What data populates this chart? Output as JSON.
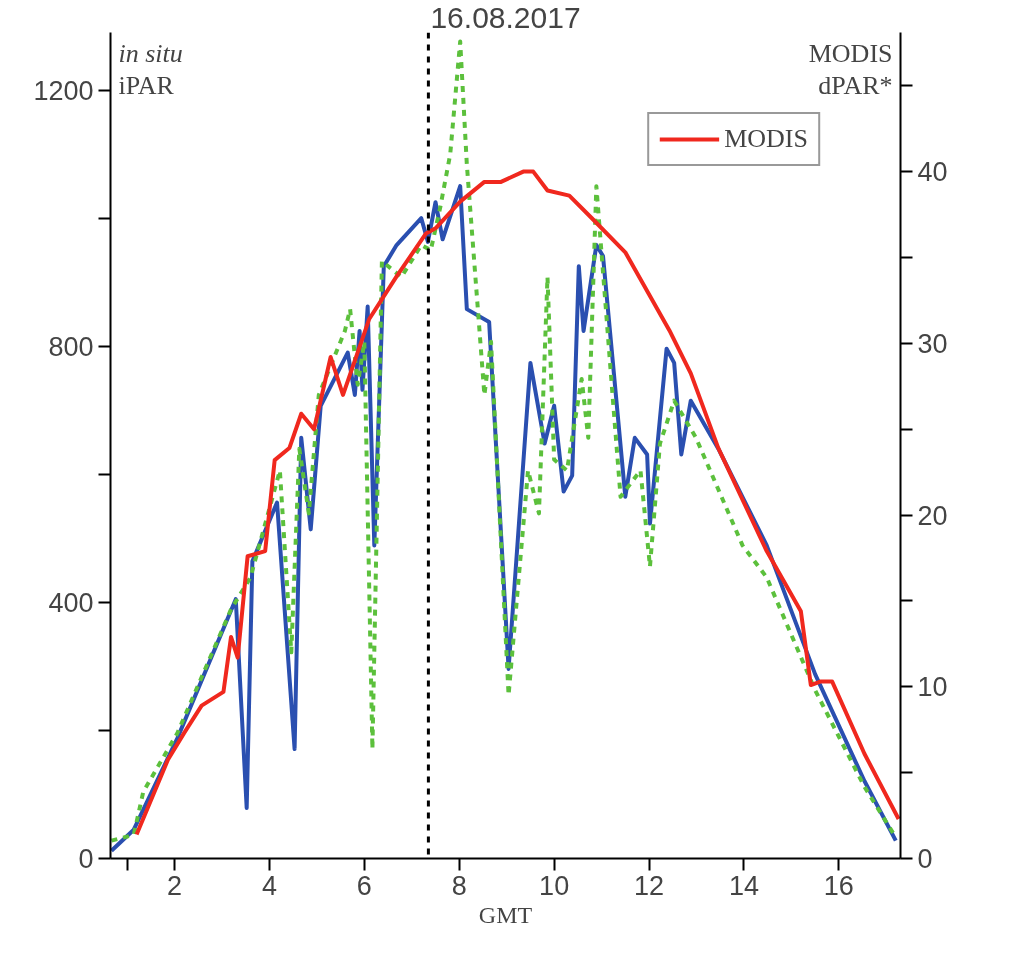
{
  "chart_data": {
    "type": "line",
    "title": "16.08.2017",
    "xlabel": "GMT",
    "ylabel": "in situ\niPAR",
    "y2label": "MODIS\ndPAR*",
    "xlim": [
      0.65,
      17.3
    ],
    "xticks": [
      {
        "value": 1,
        "label": null
      },
      2,
      4,
      6,
      8,
      10,
      12,
      14,
      16
    ],
    "ylim": [
      0,
      1290
    ],
    "yticks": [
      0,
      {
        "value": 200,
        "label": null
      },
      400,
      {
        "value": 600,
        "label": null
      },
      800,
      {
        "value": 1000,
        "label": null
      },
      1200
    ],
    "y2lim": [
      0,
      48.1
    ],
    "y2ticks": [
      0,
      {
        "value": 5,
        "label": null
      },
      10,
      {
        "value": 15,
        "label": null
      },
      20,
      {
        "value": 25,
        "label": null
      },
      30,
      {
        "value": 35,
        "label": null
      },
      40,
      {
        "value": 45,
        "label": null
      }
    ],
    "grid": false,
    "legend": "top right",
    "marker": "none",
    "ref_lines": [
      {
        "axis": "x",
        "value": 7.35,
        "color": "#000000",
        "line_style": "dashed"
      }
    ],
    "series": [
      {
        "color": "#2a4fb0",
        "line_style": "solid",
        "x": [
          0.67,
          1.14,
          2.06,
          3.29,
          3.52,
          3.64,
          4.16,
          4.53,
          4.67,
          4.87,
          5.08,
          5.65,
          5.8,
          5.9,
          5.96,
          6.07,
          6.21,
          6.41,
          6.68,
          7.2,
          7.34,
          7.5,
          7.65,
          8.02,
          8.16,
          8.63,
          9.04,
          9.5,
          9.8,
          10.0,
          10.2,
          10.38,
          10.52,
          10.62,
          10.89,
          11.03,
          11.5,
          11.7,
          11.96,
          12.02,
          12.37,
          12.53,
          12.68,
          12.88,
          13.46,
          14.48,
          15.5,
          16.54,
          17.2
        ],
        "values": [
          12,
          45,
          188,
          405,
          79,
          464,
          556,
          171,
          657,
          514,
          707,
          790,
          724,
          824,
          732,
          862,
          489,
          925,
          958,
          1000,
          963,
          1025,
          967,
          1050,
          858,
          838,
          296,
          774,
          648,
          707,
          573,
          598,
          925,
          824,
          958,
          941,
          565,
          657,
          631,
          523,
          796,
          774,
          631,
          715,
          640,
          489,
          288,
          121,
          28
        ]
      },
      {
        "color": "#5cc03c",
        "line_style": "dashed",
        "x": [
          0.67,
          1.14,
          1.34,
          2.06,
          3.19,
          3.6,
          4.22,
          4.46,
          4.63,
          4.83,
          5.04,
          5.59,
          5.7,
          5.86,
          6.0,
          6.17,
          6.37,
          6.78,
          7.2,
          7.4,
          7.6,
          7.81,
          8.02,
          8.16,
          8.53,
          8.67,
          9.04,
          9.45,
          9.68,
          9.86,
          10.0,
          10.27,
          10.58,
          10.72,
          10.89,
          11.24,
          11.4,
          11.82,
          12.02,
          12.23,
          12.53,
          12.99,
          13.97,
          14.48,
          15.5,
          16.54,
          17.2
        ],
        "values": [
          28,
          37,
          104,
          196,
          389,
          439,
          606,
          322,
          640,
          539,
          724,
          824,
          858,
          740,
          807,
          171,
          933,
          908,
          958,
          950,
          1017,
          1100,
          1276,
          1084,
          724,
          807,
          255,
          606,
          539,
          908,
          623,
          606,
          749,
          657,
          1050,
          715,
          565,
          606,
          456,
          648,
          715,
          657,
          489,
          439,
          263,
          112,
          33
        ]
      },
      {
        "name": "MODIS",
        "color": "#f0281e",
        "line_style": "solid",
        "axis": "y2",
        "x": [
          1.2,
          1.86,
          2.2,
          2.57,
          3.03,
          3.19,
          3.33,
          3.54,
          3.91,
          4.11,
          4.42,
          4.67,
          4.94,
          5.29,
          5.55,
          6.1,
          6.68,
          7.3,
          7.5,
          8.02,
          8.53,
          8.88,
          9.35,
          9.56,
          9.86,
          10.32,
          10.79,
          11.5,
          12.43,
          12.88,
          13.46,
          14.48,
          15.2,
          15.41,
          15.61,
          15.86,
          16.54,
          17.26
        ],
        "values": [
          1.4,
          5.75,
          7.3,
          8.9,
          9.7,
          12.9,
          11.7,
          17.6,
          17.9,
          23.2,
          23.9,
          25.9,
          25.0,
          29.2,
          27.0,
          31.4,
          33.9,
          36.4,
          36.7,
          38.25,
          39.4,
          39.4,
          40.0,
          40.0,
          38.9,
          38.6,
          37.3,
          35.3,
          30.75,
          28.25,
          23.9,
          17.9,
          14.4,
          10.1,
          10.3,
          10.3,
          6.1,
          2.3
        ]
      }
    ]
  }
}
